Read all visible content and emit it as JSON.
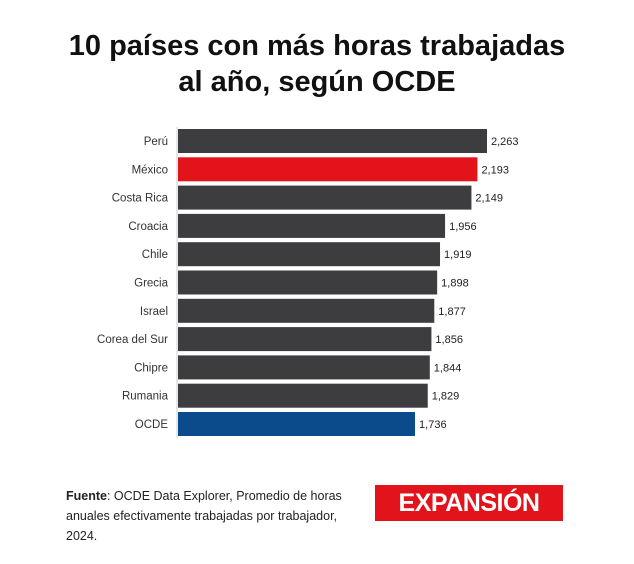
{
  "title": {
    "line1": "10 países con más horas trabajadas",
    "line2": "al año, según OCDE"
  },
  "source": {
    "label": "Fuente",
    "text": ": OCDE Data Explorer, Promedio de horas anuales efectivamente trabajadas por trabajador, 2024."
  },
  "logo": {
    "text": "EXPANSIÓN"
  },
  "colors": {
    "default_bar": "#3d3d3f",
    "highlight": "#e3131b",
    "ocde": "#0b4a8b",
    "brand": "#e3131b"
  },
  "chart_data": {
    "type": "bar",
    "orientation": "horizontal",
    "title": "10 países con más horas trabajadas al año, según OCDE",
    "xlabel": "",
    "ylabel": "",
    "xlim": [
      0,
      2300
    ],
    "categories": [
      "Perú",
      "México",
      "Costa Rica",
      "Croacia",
      "Chile",
      "Grecia",
      "Israel",
      "Corea del Sur",
      "Chipre",
      "Rumania",
      "OCDE"
    ],
    "values": [
      2263,
      2193,
      2149,
      1956,
      1919,
      1898,
      1877,
      1856,
      1844,
      1829,
      1736
    ],
    "value_labels": [
      "2,263",
      "2,193",
      "2,149",
      "1,956",
      "1,919",
      "1,898",
      "1,877",
      "1,856",
      "1,844",
      "1,829",
      "1,736"
    ],
    "bar_colors": [
      "default",
      "highlight",
      "default",
      "default",
      "default",
      "default",
      "default",
      "default",
      "default",
      "default",
      "ocde"
    ]
  }
}
